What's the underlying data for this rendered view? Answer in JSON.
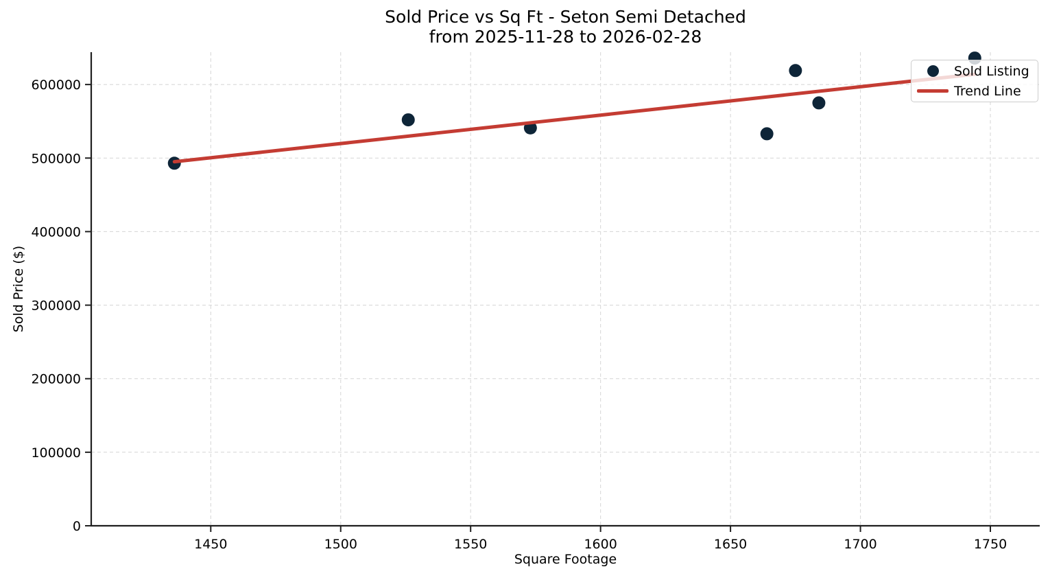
{
  "title": {
    "line1": "Sold Price vs Sq Ft - Seton Semi Detached",
    "line2": "from 2025-11-28 to 2026-02-28"
  },
  "axes": {
    "x_label": "Square Footage",
    "y_label": "Sold Price ($)"
  },
  "legend": {
    "items": [
      {
        "label": "Sold Listing",
        "marker": "dot"
      },
      {
        "label": "Trend Line",
        "marker": "line"
      }
    ]
  },
  "chart_data": {
    "type": "scatter",
    "title": "Sold Price vs Sq Ft - Seton Semi Detached",
    "subtitle": "from 2025-11-28 to 2026-02-28",
    "xlabel": "Square Footage",
    "ylabel": "Sold Price ($)",
    "xlim": [
      1404,
      1769
    ],
    "ylim": [
      0,
      644000
    ],
    "x_ticks": [
      1450,
      1500,
      1550,
      1600,
      1650,
      1700,
      1750
    ],
    "y_ticks": [
      0,
      100000,
      200000,
      300000,
      400000,
      500000,
      600000
    ],
    "grid": true,
    "legend_position": "upper right",
    "series": [
      {
        "name": "Sold Listing",
        "type": "scatter",
        "color": "#0e2538",
        "marker_radius": 9.5,
        "points": [
          {
            "sqft": 1436,
            "price": 493000
          },
          {
            "sqft": 1526,
            "price": 552000
          },
          {
            "sqft": 1573,
            "price": 541000
          },
          {
            "sqft": 1664,
            "price": 533000
          },
          {
            "sqft": 1675,
            "price": 619000
          },
          {
            "sqft": 1684,
            "price": 575000
          },
          {
            "sqft": 1744,
            "price": 636000
          }
        ]
      },
      {
        "name": "Trend Line",
        "type": "line",
        "color": "#c43c33",
        "width": 5,
        "points": [
          {
            "sqft": 1436,
            "price": 495000
          },
          {
            "sqft": 1744,
            "price": 614000
          }
        ]
      }
    ]
  },
  "style": {
    "background": "#ffffff",
    "grid_color": "#d9d9d9",
    "spine_color": "#1f1f1f",
    "text_color": "#000000",
    "legend_border": "#cccccc",
    "tick_font_px": 19
  }
}
